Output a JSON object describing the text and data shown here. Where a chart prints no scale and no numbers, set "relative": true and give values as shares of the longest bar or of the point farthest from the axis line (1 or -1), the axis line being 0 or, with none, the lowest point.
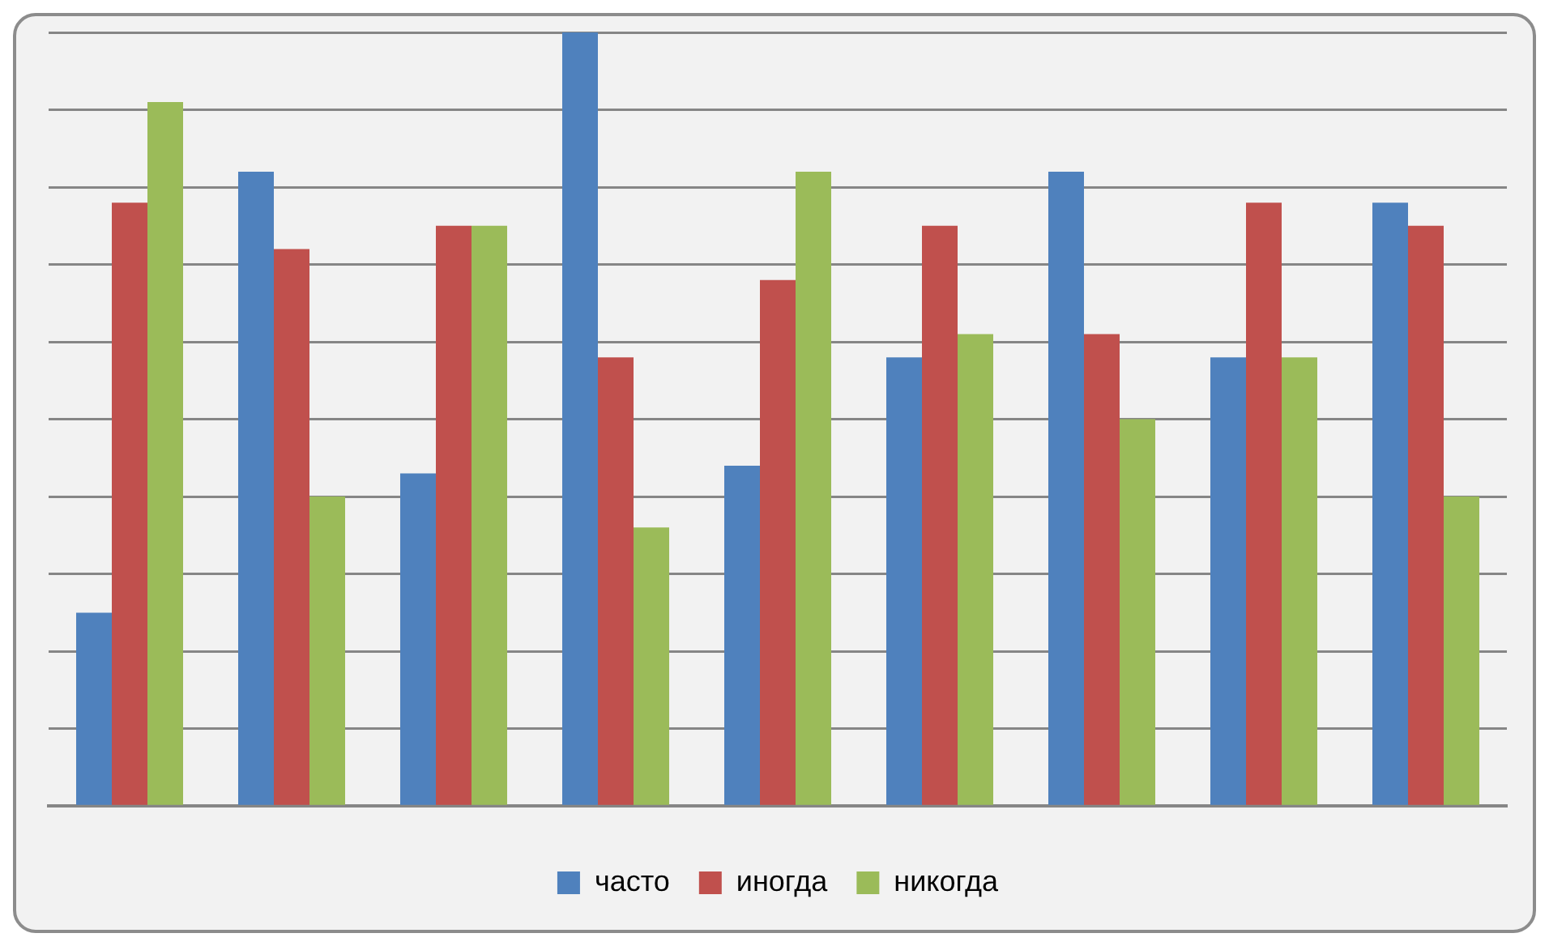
{
  "chart_data": {
    "type": "bar",
    "relative": true,
    "categories": [
      null,
      null,
      null,
      null,
      null,
      null,
      null,
      null,
      null
    ],
    "series": [
      {
        "name": "часто",
        "color": "#4f81bd",
        "values": [
          0.25,
          0.82,
          0.43,
          1,
          0.44,
          0.58,
          0.82,
          0.58,
          0.78
        ]
      },
      {
        "name": "иногда",
        "color": "#c0504d",
        "values": [
          0.78,
          0.72,
          0.75,
          0.58,
          0.68,
          0.75,
          0.61,
          0.78,
          0.75
        ]
      },
      {
        "name": "никогда",
        "color": "#9bbb59",
        "values": [
          0.91,
          0.4,
          0.75,
          0.36,
          0.82,
          0.61,
          0.5,
          0.58,
          0.4
        ]
      }
    ],
    "grid": "y",
    "legend": "bottom"
  }
}
